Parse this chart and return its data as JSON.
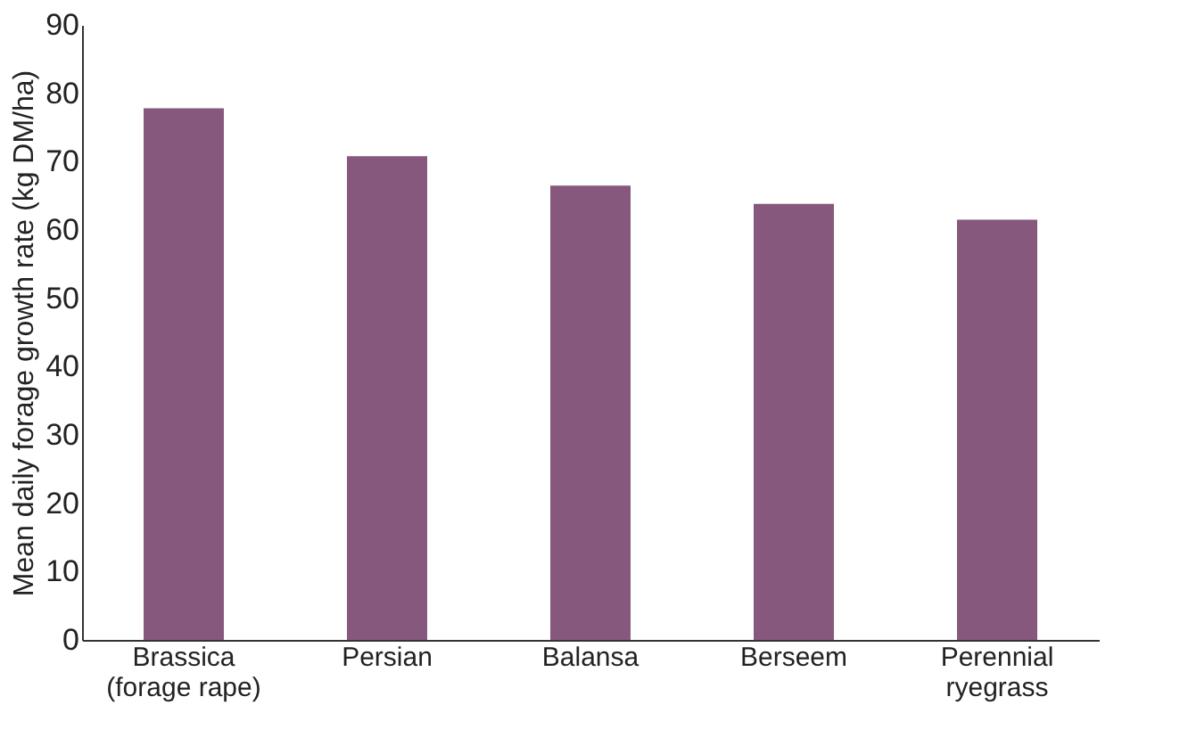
{
  "chart_data": {
    "type": "bar",
    "ylabel": "Mean daily forage growth rate (kg DM/ha)",
    "categories": [
      "Brassica (forage rape)",
      "Persian",
      "Balansa",
      "Berseem",
      "Perennial ryegrass"
    ],
    "values": [
      77.8,
      70.8,
      66.5,
      63.8,
      61.5
    ],
    "color": "#87587d",
    "ylim": [
      0,
      90
    ],
    "yticks": [
      0,
      10,
      20,
      30,
      40,
      50,
      60,
      70,
      80,
      90
    ],
    "grid": false
  }
}
